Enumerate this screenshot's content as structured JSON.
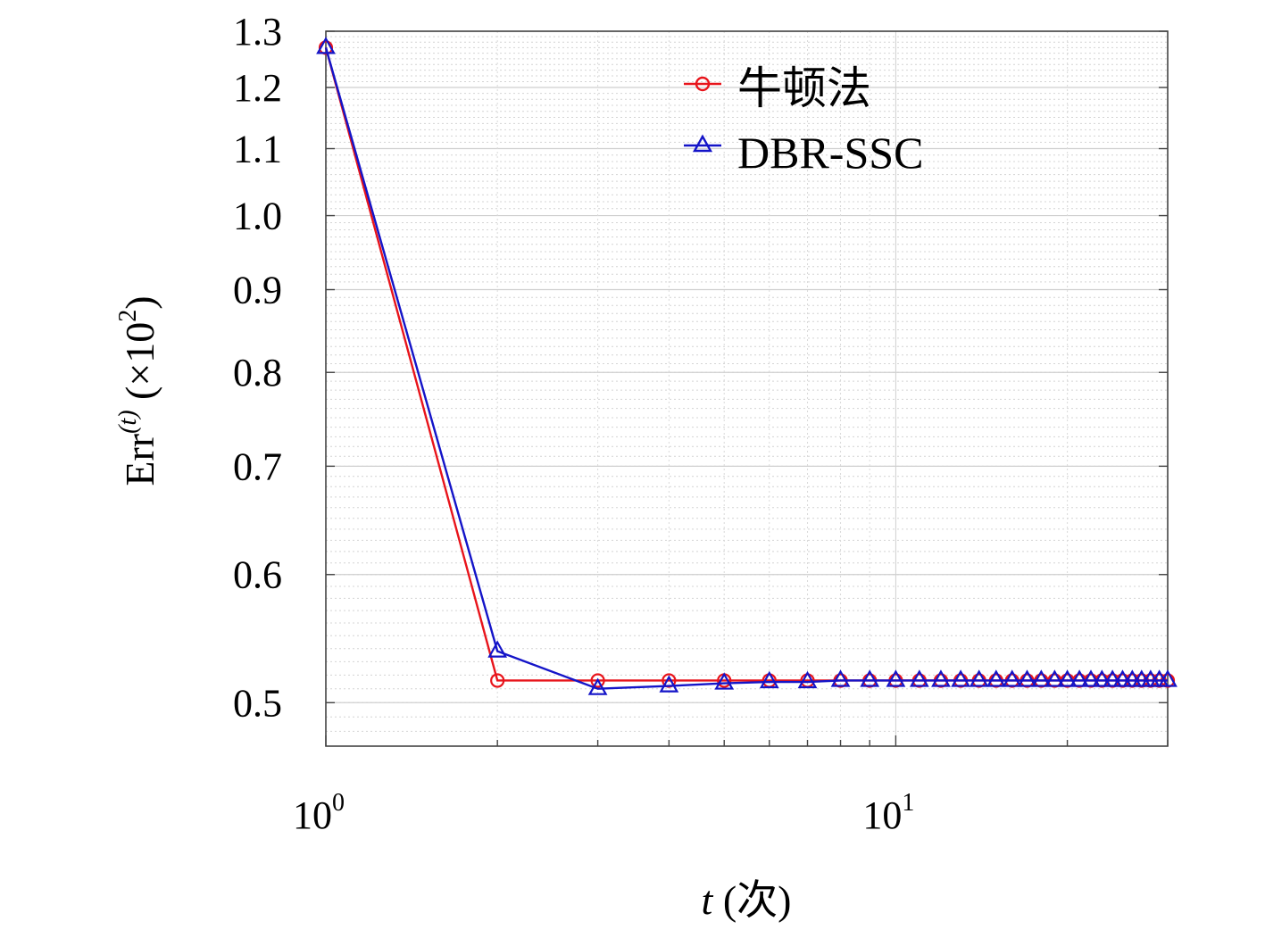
{
  "chart_data": {
    "type": "line",
    "title": "",
    "x_scale": "log",
    "y_scale": "log",
    "xlim": [
      1,
      30
    ],
    "ylim": [
      0.47,
      1.3
    ],
    "grid": true,
    "legend_position": "top-right",
    "xlabel": {
      "main": "t",
      "suffix": " (次)"
    },
    "ylabel": {
      "main": "Err",
      "superscript": "(t)",
      "factor_prefix": " (×10",
      "factor_exponent": "2",
      "factor_suffix": ")"
    },
    "x_ticks": [
      {
        "base": "10",
        "exp": "0",
        "value": 1
      },
      {
        "base": "10",
        "exp": "1",
        "value": 10
      }
    ],
    "y_ticks": [
      {
        "label": "0.5",
        "value": 0.5
      },
      {
        "label": "0.6",
        "value": 0.6
      },
      {
        "label": "0.7",
        "value": 0.7
      },
      {
        "label": "0.8",
        "value": 0.8
      },
      {
        "label": "0.9",
        "value": 0.9
      },
      {
        "label": "1.0",
        "value": 1.0
      },
      {
        "label": "1.1",
        "value": 1.1
      },
      {
        "label": "1.2",
        "value": 1.2
      },
      {
        "label": "1.3",
        "value": 1.3
      }
    ],
    "x": [
      1,
      2,
      3,
      4,
      5,
      6,
      7,
      8,
      9,
      10,
      11,
      12,
      13,
      14,
      15,
      16,
      17,
      18,
      19,
      20,
      21,
      22,
      23,
      24,
      25,
      26,
      27,
      28,
      29,
      30
    ],
    "series": [
      {
        "name": "牛顿法",
        "color": "#e8141b",
        "marker": "circle",
        "values": [
          1.27,
          0.516,
          0.516,
          0.516,
          0.516,
          0.516,
          0.516,
          0.516,
          0.516,
          0.516,
          0.516,
          0.516,
          0.516,
          0.516,
          0.516,
          0.516,
          0.516,
          0.516,
          0.516,
          0.516,
          0.516,
          0.516,
          0.516,
          0.516,
          0.516,
          0.516,
          0.516,
          0.516,
          0.516,
          0.516
        ]
      },
      {
        "name": "DBR-SSC",
        "color": "#1414c8",
        "marker": "triangle",
        "values": [
          1.27,
          0.538,
          0.51,
          0.512,
          0.514,
          0.515,
          0.515,
          0.516,
          0.516,
          0.516,
          0.516,
          0.516,
          0.516,
          0.516,
          0.516,
          0.516,
          0.516,
          0.516,
          0.516,
          0.516,
          0.516,
          0.516,
          0.516,
          0.516,
          0.516,
          0.516,
          0.516,
          0.516,
          0.516,
          0.516
        ]
      }
    ]
  }
}
